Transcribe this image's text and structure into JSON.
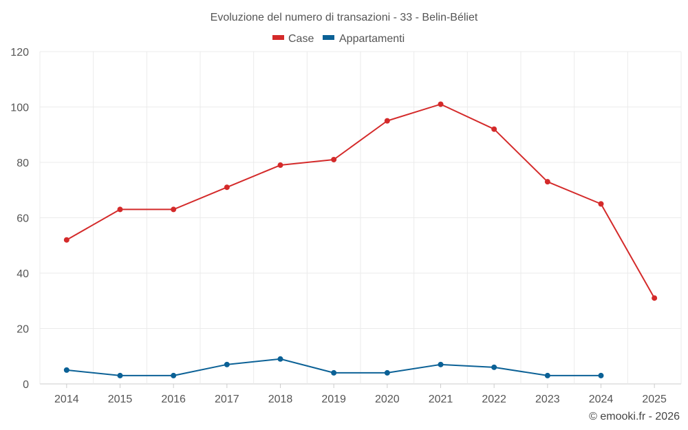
{
  "chart_data": {
    "type": "line",
    "title": "Evoluzione del numero di transazioni - 33 - Belin-Béliet",
    "categories": [
      "2014",
      "2015",
      "2016",
      "2017",
      "2018",
      "2019",
      "2020",
      "2021",
      "2022",
      "2023",
      "2024",
      "2025"
    ],
    "series": [
      {
        "name": "Case",
        "color": "#d42a2a",
        "values": [
          52,
          63,
          63,
          71,
          79,
          81,
          95,
          101,
          92,
          73,
          65,
          31
        ]
      },
      {
        "name": "Appartamenti",
        "color": "#0b6196",
        "values": [
          5,
          3,
          3,
          7,
          9,
          4,
          4,
          7,
          6,
          3,
          3,
          null
        ]
      }
    ],
    "ylim": [
      0,
      120
    ],
    "yticks": [
      "0",
      "20",
      "40",
      "60",
      "80",
      "100",
      "120"
    ],
    "grid": true,
    "legend_position": "top-center",
    "xlabel": "",
    "ylabel": ""
  },
  "credit": "© emooki.fr - 2026"
}
